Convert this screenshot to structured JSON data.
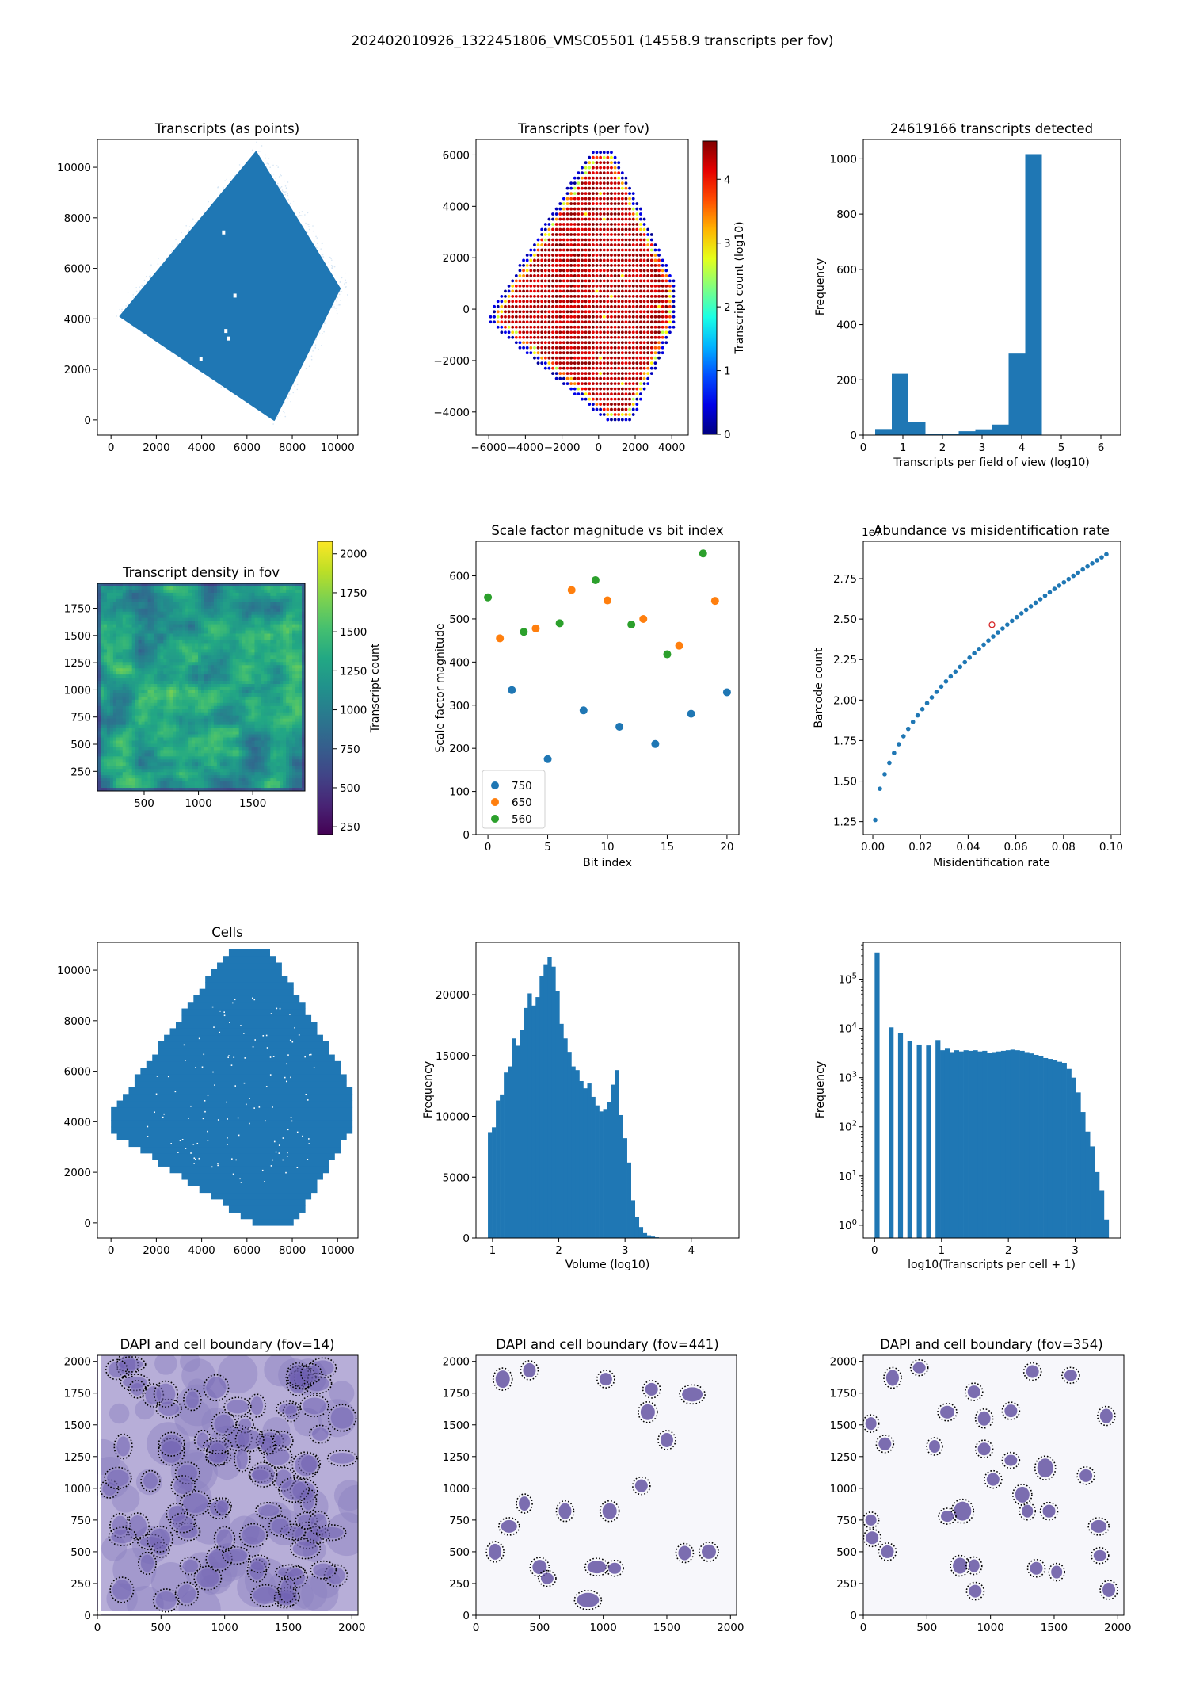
{
  "suptitle": "202402010926_1322451806_VMSC05501 (14558.9 transcripts per fov)",
  "panels": {
    "transcripts_points": {
      "title": "Transcripts (as points)"
    },
    "transcripts_fov": {
      "title": "Transcripts (per fov)",
      "colorbar_label": "Transcript count (log10)",
      "colormap": "jet"
    },
    "fov_hist": {
      "title": "24619166 transcripts detected",
      "xlabel": "Transcripts per field of view (log10)",
      "ylabel": "Frequency"
    },
    "density": {
      "title": "Transcript density in fov",
      "colorbar_label": "Transcript count",
      "colormap": "viridis"
    },
    "scale_factor": {
      "title": "Scale factor magnitude vs bit index",
      "xlabel": "Bit index",
      "ylabel": "Scale factor magnitude"
    },
    "abundance": {
      "title": "Abundance vs misidentification rate",
      "xlabel": "Misidentification rate",
      "ylabel": "Barcode count",
      "offset_text": "1e7"
    },
    "cells": {
      "title": "Cells"
    },
    "volume_hist": {
      "xlabel": "Volume (log10)",
      "ylabel": "Frequency"
    },
    "tpc_hist": {
      "xlabel": "log10(Transcripts per cell + 1)",
      "ylabel": "Frequency"
    },
    "dapi14": {
      "title": "DAPI and cell boundary (fov=14)"
    },
    "dapi441": {
      "title": "DAPI and cell boundary (fov=441)"
    },
    "dapi354": {
      "title": "DAPI and cell boundary (fov=354)"
    }
  },
  "colors": {
    "blue": "#1f77b4",
    "orange": "#ff7f0e",
    "green": "#2ca02c",
    "red": "#d62728",
    "dapi": "#5b4a9e"
  },
  "chart_data": [
    {
      "id": "transcripts_points",
      "type": "scatter",
      "title": "Transcripts (as points)",
      "xlim": [
        -600,
        10900
      ],
      "ylim": [
        -600,
        11100
      ],
      "xticks": [
        0,
        2000,
        4000,
        6000,
        8000,
        10000
      ],
      "yticks": [
        0,
        2000,
        4000,
        6000,
        8000,
        10000
      ],
      "outline": [
        [
          6400,
          10600
        ],
        [
          10100,
          5200
        ],
        [
          7200,
          0
        ],
        [
          400,
          4100
        ]
      ]
    },
    {
      "id": "transcripts_fov",
      "type": "scatter",
      "title": "Transcripts (per fov)",
      "xlim": [
        -6700,
        4900
      ],
      "ylim": [
        -4900,
        6600
      ],
      "xticks": [
        -6000,
        -4000,
        -2000,
        0,
        2000,
        4000
      ],
      "yticks": [
        -4000,
        -2000,
        0,
        2000,
        4000,
        6000
      ],
      "outline": [
        [
          -400,
          6200
        ],
        [
          800,
          6200
        ],
        [
          4200,
          1000
        ],
        [
          4200,
          -600
        ],
        [
          1800,
          -4400
        ],
        [
          500,
          -4400
        ],
        [
          -6000,
          -500
        ],
        [
          -5800,
          0
        ]
      ],
      "value_range": [
        0,
        4.6
      ],
      "colorbar_label": "Transcript count (log10)",
      "colorbar_ticks": [
        0,
        1,
        2,
        3,
        4
      ]
    },
    {
      "id": "fov_hist",
      "type": "bar",
      "title": "24619166 transcripts detected",
      "xlabel": "Transcripts per field of view (log10)",
      "ylabel": "Frequency",
      "bin_edges": [
        0.3,
        0.72,
        1.14,
        1.57,
        1.99,
        2.41,
        2.83,
        3.25,
        3.67,
        4.09,
        4.51
      ],
      "values": [
        22,
        222,
        47,
        5,
        5,
        14,
        21,
        38,
        295,
        1017
      ],
      "xlim": [
        0,
        6.5
      ],
      "ylim": [
        0,
        1070
      ],
      "xticks": [
        0,
        1,
        2,
        3,
        4,
        5,
        6
      ],
      "yticks": [
        0,
        200,
        400,
        600,
        800,
        1000
      ]
    },
    {
      "id": "density",
      "type": "heatmap",
      "title": "Transcript density in fov",
      "xlim": [
        70,
        1980
      ],
      "ylim": [
        70,
        1980
      ],
      "xticks": [
        500,
        1000,
        1500
      ],
      "yticks": [
        250,
        500,
        750,
        1000,
        1250,
        1500,
        1750
      ],
      "value_range": [
        200,
        2080
      ],
      "colorbar_label": "Transcript count",
      "colorbar_ticks": [
        250,
        500,
        750,
        1000,
        1250,
        1500,
        1750,
        2000
      ]
    },
    {
      "id": "scale_factor",
      "type": "scatter",
      "title": "Scale factor magnitude vs bit index",
      "xlabel": "Bit index",
      "ylabel": "Scale factor magnitude",
      "xlim": [
        -1,
        21
      ],
      "ylim": [
        0,
        680
      ],
      "xticks": [
        0,
        5,
        10,
        15,
        20
      ],
      "yticks": [
        0,
        100,
        200,
        300,
        400,
        500,
        600
      ],
      "legend": "lower left",
      "series": [
        {
          "name": "750",
          "x": [
            2,
            5,
            8,
            11,
            14,
            17,
            20
          ],
          "y": [
            335,
            175,
            288,
            250,
            210,
            280,
            330
          ]
        },
        {
          "name": "650",
          "x": [
            1,
            4,
            7,
            10,
            13,
            16,
            19
          ],
          "y": [
            455,
            478,
            567,
            543,
            500,
            438,
            542
          ]
        },
        {
          "name": "560",
          "x": [
            0,
            3,
            6,
            9,
            12,
            15,
            18
          ],
          "y": [
            550,
            470,
            490,
            590,
            487,
            418,
            652
          ]
        }
      ]
    },
    {
      "id": "abundance",
      "type": "scatter",
      "title": "Abundance vs misidentification rate",
      "xlabel": "Misidentification rate",
      "ylabel": "Barcode count",
      "y_scale_label": "1e7",
      "xlim": [
        -0.004,
        0.104
      ],
      "ylim": [
        1.17,
        2.98
      ],
      "xticks": [
        0.0,
        0.02,
        0.04,
        0.06,
        0.08,
        0.1
      ],
      "yticks": [
        1.25,
        1.5,
        1.75,
        2.0,
        2.25,
        2.5,
        2.75
      ],
      "curve": {
        "x_start": 0.001,
        "x_end": 0.098,
        "n": 50,
        "y_start": 1.26,
        "y_end": 2.9
      },
      "highlight": {
        "x": 0.05,
        "y": 2.465
      }
    },
    {
      "id": "cells",
      "type": "scatter",
      "title": "Cells",
      "xlim": [
        -600,
        10900
      ],
      "ylim": [
        -600,
        11100
      ],
      "xticks": [
        0,
        2000,
        4000,
        6000,
        8000,
        10000
      ],
      "yticks": [
        0,
        2000,
        4000,
        6000,
        8000,
        10000
      ],
      "outline": [
        [
          5300,
          10800
        ],
        [
          6900,
          10800
        ],
        [
          10000,
          6200
        ],
        [
          10500,
          5300
        ],
        [
          10500,
          3700
        ],
        [
          7900,
          -100
        ],
        [
          6500,
          -100
        ],
        [
          0,
          3700
        ],
        [
          0,
          4200
        ]
      ]
    },
    {
      "id": "volume_hist",
      "type": "bar",
      "xlabel": "Volume (log10)",
      "ylabel": "Frequency",
      "bin_edges": [
        0.93,
        0.99,
        1.05,
        1.11,
        1.17,
        1.23,
        1.29,
        1.35,
        1.41,
        1.47,
        1.53,
        1.59,
        1.65,
        1.71,
        1.77,
        1.83,
        1.89,
        1.95,
        2.01,
        2.07,
        2.13,
        2.19,
        2.25,
        2.31,
        2.37,
        2.43,
        2.49,
        2.55,
        2.61,
        2.67,
        2.73,
        2.79,
        2.85,
        2.91,
        2.97,
        3.03,
        3.09,
        3.15,
        3.21,
        3.27,
        3.33,
        3.39,
        3.45,
        3.51,
        3.57,
        3.63,
        3.69
      ],
      "values": [
        8700,
        9100,
        11300,
        11800,
        13600,
        14100,
        16400,
        15800,
        17100,
        18900,
        20100,
        19100,
        19800,
        21500,
        22500,
        23100,
        22300,
        20300,
        17600,
        16400,
        15300,
        14100,
        13800,
        12900,
        12300,
        12700,
        11600,
        10900,
        10400,
        10600,
        11200,
        12600,
        13800,
        10100,
        8200,
        6200,
        3100,
        1700,
        900,
        400,
        220,
        120,
        60,
        30,
        15,
        8
      ],
      "xlim": [
        0.75,
        4.72
      ],
      "ylim": [
        0,
        24300
      ],
      "xticks": [
        1,
        2,
        3,
        4
      ],
      "yticks": [
        0,
        5000,
        10000,
        15000,
        20000
      ]
    },
    {
      "id": "tpc_hist",
      "type": "bar",
      "xlabel": "log10(Transcripts per cell + 1)",
      "ylabel": "Frequency",
      "y_scale": "log",
      "bin_edges": [
        0.0,
        0.07,
        0.14,
        0.21,
        0.28,
        0.35,
        0.42,
        0.49,
        0.56,
        0.63,
        0.7,
        0.77,
        0.84,
        0.91,
        0.98,
        1.05,
        1.12,
        1.19,
        1.26,
        1.33,
        1.4,
        1.47,
        1.54,
        1.61,
        1.68,
        1.75,
        1.82,
        1.89,
        1.96,
        2.03,
        2.1,
        2.17,
        2.24,
        2.31,
        2.38,
        2.45,
        2.52,
        2.59,
        2.66,
        2.73,
        2.8,
        2.87,
        2.94,
        3.01,
        3.08,
        3.15,
        3.22,
        3.29,
        3.36,
        3.43,
        3.5
      ],
      "values": [
        350000,
        0,
        0,
        10500,
        0,
        8000,
        0,
        5500,
        0,
        4700,
        0,
        4500,
        0,
        5800,
        3600,
        4000,
        3300,
        3600,
        3400,
        3600,
        3500,
        3600,
        3400,
        3500,
        3200,
        3300,
        3400,
        3500,
        3600,
        3700,
        3600,
        3500,
        3300,
        3100,
        2900,
        2700,
        2500,
        2400,
        2300,
        2100,
        2000,
        1500,
        1000,
        500,
        200,
        80,
        40,
        12,
        5,
        1.3
      ],
      "xlim": [
        -0.17,
        3.68
      ],
      "ylim_log10": [
        -0.26,
        5.75
      ],
      "xticks": [
        0,
        1,
        2,
        3
      ],
      "yticks": [
        "10^0",
        "10^1",
        "10^2",
        "10^3",
        "10^4",
        "10^5"
      ]
    },
    {
      "id": "dapi14",
      "type": "image",
      "title": "DAPI and cell boundary (fov=14)",
      "xlim": [
        0,
        2048
      ],
      "ylim": [
        0,
        2048
      ],
      "xticks": [
        0,
        500,
        1000,
        1500,
        2000
      ],
      "yticks": [
        0,
        250,
        500,
        750,
        1000,
        1250,
        1500,
        1750,
        2000
      ]
    },
    {
      "id": "dapi441",
      "type": "image",
      "title": "DAPI and cell boundary (fov=441)",
      "xlim": [
        0,
        2048
      ],
      "ylim": [
        0,
        2048
      ],
      "xticks": [
        0,
        500,
        1000,
        1500,
        2000
      ],
      "yticks": [
        0,
        250,
        500,
        750,
        1000,
        1250,
        1500,
        1750,
        2000
      ]
    },
    {
      "id": "dapi354",
      "type": "image",
      "title": "DAPI and cell boundary (fov=354)",
      "xlim": [
        0,
        2048
      ],
      "ylim": [
        0,
        2048
      ],
      "xticks": [
        0,
        500,
        1000,
        1500,
        2000
      ],
      "yticks": [
        0,
        250,
        500,
        750,
        1000,
        1250,
        1500,
        1750,
        2000
      ]
    }
  ]
}
